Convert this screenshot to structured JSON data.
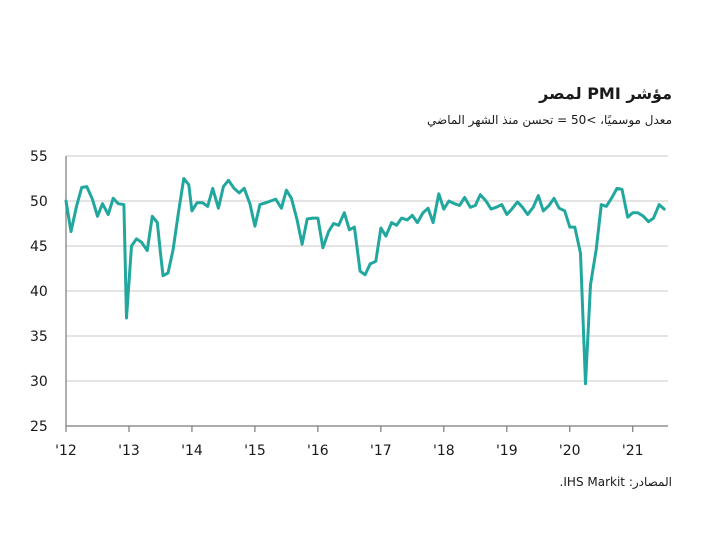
{
  "chart_data": {
    "type": "line",
    "title": "مؤشر PMI لمصر",
    "subtitle": "معدل موسميًا، >50 = تحسن منذ الشهر الماضي",
    "source": "المصادر: IHS Markit.",
    "xlabel": "",
    "ylabel": "",
    "ylim": [
      25,
      55
    ],
    "yticks": [
      "55",
      "50",
      "45",
      "40",
      "35",
      "30",
      "25"
    ],
    "xticks": [
      "'12",
      "'13",
      "'14",
      "'15",
      "'16",
      "'17",
      "'18",
      "'19",
      "'20",
      "'21"
    ],
    "grid": true,
    "line_color": "#22a79f",
    "grid_color": "#c9c9c9",
    "series": [
      {
        "values": [
          [
            2012.0,
            50.0
          ],
          [
            2012.08,
            46.6
          ],
          [
            2012.17,
            49.5
          ],
          [
            2012.25,
            51.5
          ],
          [
            2012.33,
            51.6
          ],
          [
            2012.42,
            50.2
          ],
          [
            2012.5,
            48.3
          ],
          [
            2012.58,
            49.7
          ],
          [
            2012.67,
            48.5
          ],
          [
            2012.75,
            50.3
          ],
          [
            2012.83,
            49.7
          ],
          [
            2012.92,
            49.6
          ],
          [
            2012.96,
            37.0
          ],
          [
            2013.04,
            45.0
          ],
          [
            2013.12,
            45.8
          ],
          [
            2013.2,
            45.4
          ],
          [
            2013.29,
            44.5
          ],
          [
            2013.37,
            48.3
          ],
          [
            2013.45,
            47.6
          ],
          [
            2013.5,
            44.2
          ],
          [
            2013.54,
            41.7
          ],
          [
            2013.62,
            42.0
          ],
          [
            2013.7,
            44.6
          ],
          [
            2013.79,
            48.9
          ],
          [
            2013.87,
            52.5
          ],
          [
            2013.95,
            51.8
          ],
          [
            2014.0,
            48.9
          ],
          [
            2014.08,
            49.8
          ],
          [
            2014.17,
            49.8
          ],
          [
            2014.25,
            49.4
          ],
          [
            2014.33,
            51.4
          ],
          [
            2014.42,
            49.2
          ],
          [
            2014.5,
            51.6
          ],
          [
            2014.58,
            52.3
          ],
          [
            2014.67,
            51.4
          ],
          [
            2014.75,
            50.9
          ],
          [
            2014.83,
            51.4
          ],
          [
            2014.92,
            49.7
          ],
          [
            2015.0,
            47.2
          ],
          [
            2015.08,
            49.6
          ],
          [
            2015.17,
            49.8
          ],
          [
            2015.25,
            50.0
          ],
          [
            2015.33,
            50.2
          ],
          [
            2015.42,
            49.2
          ],
          [
            2015.5,
            51.2
          ],
          [
            2015.58,
            50.3
          ],
          [
            2015.67,
            47.9
          ],
          [
            2015.75,
            45.2
          ],
          [
            2015.83,
            48.0
          ],
          [
            2015.92,
            48.1
          ],
          [
            2016.0,
            48.1
          ],
          [
            2016.08,
            44.8
          ],
          [
            2016.17,
            46.6
          ],
          [
            2016.25,
            47.5
          ],
          [
            2016.33,
            47.3
          ],
          [
            2016.42,
            48.7
          ],
          [
            2016.5,
            46.8
          ],
          [
            2016.58,
            47.1
          ],
          [
            2016.67,
            42.2
          ],
          [
            2016.75,
            41.8
          ],
          [
            2016.83,
            43.0
          ],
          [
            2016.92,
            43.3
          ],
          [
            2017.0,
            47.0
          ],
          [
            2017.08,
            46.1
          ],
          [
            2017.17,
            47.6
          ],
          [
            2017.25,
            47.3
          ],
          [
            2017.33,
            48.1
          ],
          [
            2017.42,
            47.9
          ],
          [
            2017.5,
            48.4
          ],
          [
            2017.58,
            47.6
          ],
          [
            2017.67,
            48.7
          ],
          [
            2017.75,
            49.2
          ],
          [
            2017.83,
            47.6
          ],
          [
            2017.92,
            50.8
          ],
          [
            2018.0,
            49.1
          ],
          [
            2018.08,
            50.0
          ],
          [
            2018.17,
            49.7
          ],
          [
            2018.25,
            49.5
          ],
          [
            2018.33,
            50.4
          ],
          [
            2018.42,
            49.3
          ],
          [
            2018.5,
            49.5
          ],
          [
            2018.58,
            50.7
          ],
          [
            2018.67,
            50.0
          ],
          [
            2018.75,
            49.1
          ],
          [
            2018.83,
            49.3
          ],
          [
            2018.92,
            49.6
          ],
          [
            2019.0,
            48.5
          ],
          [
            2019.08,
            49.1
          ],
          [
            2019.17,
            49.9
          ],
          [
            2019.25,
            49.3
          ],
          [
            2019.33,
            48.5
          ],
          [
            2019.42,
            49.3
          ],
          [
            2019.5,
            50.6
          ],
          [
            2019.58,
            48.9
          ],
          [
            2019.67,
            49.5
          ],
          [
            2019.75,
            50.3
          ],
          [
            2019.83,
            49.2
          ],
          [
            2019.92,
            48.9
          ],
          [
            2020.0,
            47.1
          ],
          [
            2020.08,
            47.1
          ],
          [
            2020.17,
            44.2
          ],
          [
            2020.25,
            29.7
          ],
          [
            2020.33,
            40.7
          ],
          [
            2020.42,
            44.6
          ],
          [
            2020.5,
            49.6
          ],
          [
            2020.58,
            49.4
          ],
          [
            2020.67,
            50.4
          ],
          [
            2020.75,
            51.4
          ],
          [
            2020.83,
            51.3
          ],
          [
            2020.92,
            48.2
          ],
          [
            2021.0,
            48.7
          ],
          [
            2021.08,
            48.7
          ],
          [
            2021.17,
            48.3
          ],
          [
            2021.25,
            47.7
          ],
          [
            2021.33,
            48.1
          ],
          [
            2021.42,
            49.6
          ],
          [
            2021.5,
            49.1
          ]
        ]
      }
    ]
  }
}
